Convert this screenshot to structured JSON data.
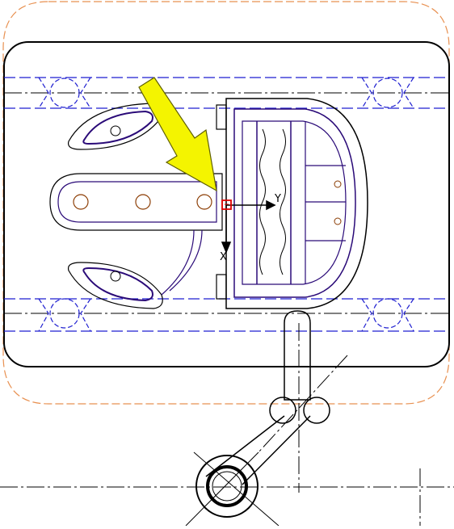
{
  "viewport": {
    "background": "#ffffff"
  },
  "colors": {
    "outline": "#000000",
    "part": "#2a0a78",
    "hidden_lines": "#1f1fd0",
    "boundary": "#e89050",
    "origin_marker": "#e00000",
    "callout_fill": "#f4f400",
    "callout_stroke": "#606000",
    "detail": "#8a3a00"
  },
  "axes": {
    "y_label": "Y",
    "x_label": "X"
  },
  "annotations": {
    "callout_icon": "arrow-callout-icon",
    "origin_icon": "origin-marker-icon"
  }
}
